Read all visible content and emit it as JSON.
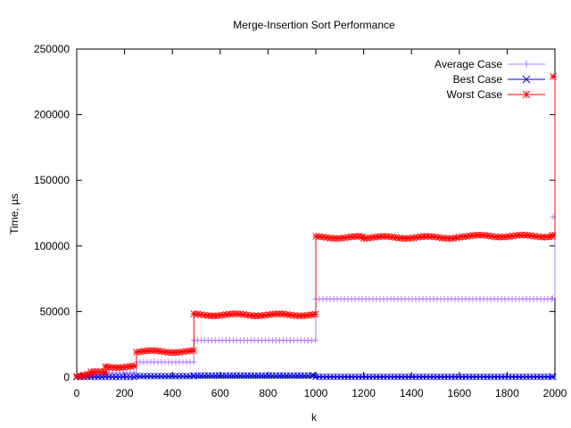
{
  "chart_data": {
    "type": "line",
    "title": "Merge-Insertion Sort Performance",
    "xlabel": "k",
    "ylabel": "Time, µs",
    "xlim": [
      0,
      2000
    ],
    "ylim": [
      0,
      250000
    ],
    "xticks": [
      0,
      200,
      400,
      600,
      800,
      1000,
      1200,
      1400,
      1600,
      1800,
      2000
    ],
    "yticks": [
      0,
      50000,
      100000,
      150000,
      200000,
      250000
    ],
    "grid": false,
    "legend_position": "top-right",
    "series": [
      {
        "name": "Average Case",
        "color": "#b27cff",
        "marker": "plus",
        "points": [
          [
            0,
            900
          ],
          [
            60,
            1500
          ],
          [
            120,
            3500
          ],
          [
            250,
            11500
          ],
          [
            490,
            28000
          ],
          [
            1000,
            59500
          ],
          [
            1990,
            60000
          ],
          [
            2000,
            122000
          ]
        ]
      },
      {
        "name": "Best Case",
        "color": "#0000e6",
        "marker": "cross",
        "points": [
          [
            0,
            200
          ],
          [
            250,
            800
          ],
          [
            490,
            1200
          ],
          [
            990,
            1400
          ],
          [
            1000,
            300
          ],
          [
            2000,
            300
          ]
        ]
      },
      {
        "name": "Worst Case",
        "color": "#ff0000",
        "marker": "star",
        "points": [
          [
            0,
            1500
          ],
          [
            30,
            2000
          ],
          [
            60,
            3500
          ],
          [
            120,
            8000
          ],
          [
            250,
            19500
          ],
          [
            490,
            47500
          ],
          [
            1000,
            106500
          ],
          [
            1200,
            106500
          ],
          [
            1600,
            107500
          ],
          [
            1990,
            108000
          ],
          [
            2000,
            229000
          ]
        ]
      }
    ]
  }
}
